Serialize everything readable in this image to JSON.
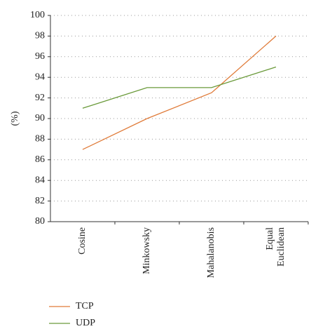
{
  "chart_data": {
    "type": "line",
    "y_label": "(%)",
    "categories": [
      "Cosine",
      "Minkowsky",
      "Mahalanobis",
      "Equal Euclidean"
    ],
    "series": [
      {
        "name": "TCP",
        "color": "#e07b39",
        "values": [
          87,
          90,
          92.5,
          98
        ]
      },
      {
        "name": "UDP",
        "color": "#6a9a3a",
        "values": [
          91,
          93,
          93,
          95
        ]
      }
    ],
    "ylim": [
      80,
      100
    ],
    "yticks": [
      80,
      82,
      84,
      86,
      88,
      90,
      92,
      94,
      96,
      98,
      100
    ],
    "grid": true,
    "legend_position": "bottom-left"
  }
}
